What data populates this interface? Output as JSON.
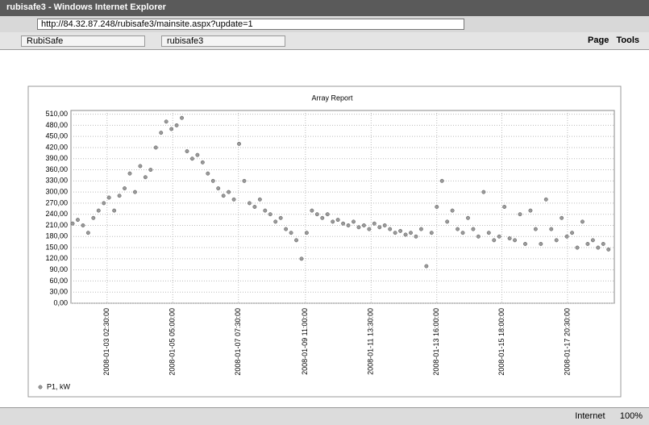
{
  "browser": {
    "window_title": "rubisafe3 - Windows Internet Explorer",
    "address": "http://84.32.87.248/rubisafe3/mainsite.aspx?update=1",
    "tabs": [
      "RubiSafe",
      "rubisafe3"
    ],
    "toolbar": [
      "Page",
      "Tools"
    ],
    "status_zone": "Internet",
    "zoom": "100%"
  },
  "chart_data": {
    "type": "scatter",
    "title": "Array Report",
    "color": "#9a9a9a",
    "grid": true,
    "xlim": [
      "2008-01-01 22:45:00",
      "2008-01-19 08:30:00"
    ],
    "xticks": [
      "2008-01-03 02:30:00",
      "2008-01-05 05:00:00",
      "2008-01-07 07:30:00",
      "2008-01-09 11:00:00",
      "2008-01-11 13:30:00",
      "2008-01-13 16:00:00",
      "2008-01-15 18:00:00",
      "2008-01-17 20:30:00"
    ],
    "ylim": [
      0,
      520
    ],
    "yticks": [
      {
        "value": 0,
        "label": "0,00"
      },
      {
        "value": 30,
        "label": "30,00"
      },
      {
        "value": 60,
        "label": "60,00"
      },
      {
        "value": 90,
        "label": "90,00"
      },
      {
        "value": 120,
        "label": "120,00"
      },
      {
        "value": 150,
        "label": "150,00"
      },
      {
        "value": 180,
        "label": "180,00"
      },
      {
        "value": 210,
        "label": "210,00"
      },
      {
        "value": 240,
        "label": "240,00"
      },
      {
        "value": 270,
        "label": "270,00"
      },
      {
        "value": 300,
        "label": "300,00"
      },
      {
        "value": 330,
        "label": "330,00"
      },
      {
        "value": 360,
        "label": "360,00"
      },
      {
        "value": 390,
        "label": "390,00"
      },
      {
        "value": 420,
        "label": "420,00"
      },
      {
        "value": 450,
        "label": "450,00"
      },
      {
        "value": 480,
        "label": "480,00"
      },
      {
        "value": 510,
        "label": "510,00"
      }
    ],
    "series": [
      {
        "name": "P1, kW",
        "color": "#9a9a9a",
        "x": [
          "2008-01-02 00:00:00",
          "2008-01-02 04:00:00",
          "2008-01-02 08:00:00",
          "2008-01-02 12:00:00",
          "2008-01-02 16:00:00",
          "2008-01-02 20:00:00",
          "2008-01-03 00:00:00",
          "2008-01-03 04:00:00",
          "2008-01-03 08:00:00",
          "2008-01-03 12:00:00",
          "2008-01-03 16:00:00",
          "2008-01-03 20:00:00",
          "2008-01-04 00:00:00",
          "2008-01-04 04:00:00",
          "2008-01-04 08:00:00",
          "2008-01-04 12:00:00",
          "2008-01-04 16:00:00",
          "2008-01-04 20:00:00",
          "2008-01-05 00:00:00",
          "2008-01-05 04:00:00",
          "2008-01-05 08:00:00",
          "2008-01-05 12:00:00",
          "2008-01-05 16:00:00",
          "2008-01-05 20:00:00",
          "2008-01-06 00:00:00",
          "2008-01-06 04:00:00",
          "2008-01-06 08:00:00",
          "2008-01-06 12:00:00",
          "2008-01-06 16:00:00",
          "2008-01-06 20:00:00",
          "2008-01-07 00:00:00",
          "2008-01-07 04:00:00",
          "2008-01-07 08:00:00",
          "2008-01-07 12:00:00",
          "2008-01-07 16:00:00",
          "2008-01-07 20:00:00",
          "2008-01-08 00:00:00",
          "2008-01-08 04:00:00",
          "2008-01-08 08:00:00",
          "2008-01-08 12:00:00",
          "2008-01-08 16:00:00",
          "2008-01-08 20:00:00",
          "2008-01-09 00:00:00",
          "2008-01-09 04:00:00",
          "2008-01-09 08:00:00",
          "2008-01-09 12:00:00",
          "2008-01-09 16:00:00",
          "2008-01-09 20:00:00",
          "2008-01-10 00:00:00",
          "2008-01-10 04:00:00",
          "2008-01-10 08:00:00",
          "2008-01-10 12:00:00",
          "2008-01-10 16:00:00",
          "2008-01-10 20:00:00",
          "2008-01-11 00:00:00",
          "2008-01-11 04:00:00",
          "2008-01-11 08:00:00",
          "2008-01-11 12:00:00",
          "2008-01-11 16:00:00",
          "2008-01-11 20:00:00",
          "2008-01-12 00:00:00",
          "2008-01-12 04:00:00",
          "2008-01-12 08:00:00",
          "2008-01-12 12:00:00",
          "2008-01-12 16:00:00",
          "2008-01-12 20:00:00",
          "2008-01-13 00:00:00",
          "2008-01-13 04:00:00",
          "2008-01-13 08:00:00",
          "2008-01-13 12:00:00",
          "2008-01-13 16:00:00",
          "2008-01-13 20:00:00",
          "2008-01-14 00:00:00",
          "2008-01-14 04:00:00",
          "2008-01-14 08:00:00",
          "2008-01-14 12:00:00",
          "2008-01-14 16:00:00",
          "2008-01-14 20:00:00",
          "2008-01-15 00:00:00",
          "2008-01-15 04:00:00",
          "2008-01-15 08:00:00",
          "2008-01-15 12:00:00",
          "2008-01-15 16:00:00",
          "2008-01-15 20:00:00",
          "2008-01-16 00:00:00",
          "2008-01-16 04:00:00",
          "2008-01-16 08:00:00",
          "2008-01-16 12:00:00",
          "2008-01-16 16:00:00",
          "2008-01-16 20:00:00",
          "2008-01-17 00:00:00",
          "2008-01-17 04:00:00",
          "2008-01-17 08:00:00",
          "2008-01-17 12:00:00",
          "2008-01-17 16:00:00",
          "2008-01-17 20:00:00",
          "2008-01-18 00:00:00",
          "2008-01-18 04:00:00",
          "2008-01-18 08:00:00",
          "2008-01-18 12:00:00",
          "2008-01-18 16:00:00",
          "2008-01-18 20:00:00",
          "2008-01-19 00:00:00",
          "2008-01-19 04:00:00"
        ],
        "values": [
          215,
          225,
          210,
          190,
          230,
          250,
          270,
          285,
          250,
          290,
          310,
          350,
          300,
          370,
          340,
          360,
          420,
          460,
          490,
          470,
          480,
          500,
          410,
          390,
          400,
          380,
          350,
          330,
          310,
          290,
          300,
          280,
          430,
          330,
          270,
          260,
          280,
          250,
          240,
          220,
          230,
          200,
          190,
          170,
          120,
          190,
          250,
          240,
          230,
          240,
          220,
          225,
          215,
          210,
          220,
          205,
          210,
          200,
          215,
          205,
          210,
          200,
          190,
          195,
          185,
          190,
          180,
          200,
          100,
          190,
          260,
          330,
          220,
          250,
          200,
          190,
          230,
          200,
          180,
          300,
          190,
          170,
          180,
          260,
          175,
          170,
          240,
          160,
          250,
          200,
          160,
          280,
          200,
          170,
          230,
          180,
          190,
          150,
          220,
          160,
          170,
          150,
          160,
          145
        ]
      }
    ]
  }
}
